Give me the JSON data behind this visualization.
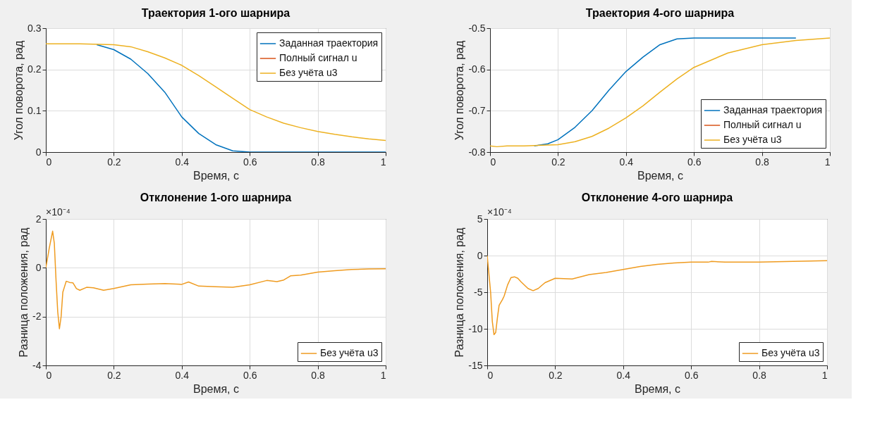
{
  "chart_data": [
    {
      "type": "line",
      "title": "Траектория 1-ого шарнира",
      "xlabel": "Время, с",
      "ylabel": "Угол поворота, рад",
      "xlim": [
        0,
        1
      ],
      "ylim": [
        0,
        0.3
      ],
      "xticks": [
        0,
        0.2,
        0.4,
        0.6,
        0.8,
        1
      ],
      "yticks": [
        0,
        0.1,
        0.2,
        0.3
      ],
      "grid": true,
      "legend": "top right",
      "series": [
        {
          "name": "Заданная траектория",
          "color": "#0072bd",
          "x": [
            0.15,
            0.2,
            0.25,
            0.3,
            0.35,
            0.4,
            0.45,
            0.5,
            0.55,
            0.6,
            0.7,
            0.8,
            0.9,
            1
          ],
          "values": [
            0.26,
            0.248,
            0.225,
            0.19,
            0.145,
            0.085,
            0.045,
            0.018,
            0.003,
            0,
            0,
            0,
            0,
            0
          ]
        },
        {
          "name": "Полный сигнал u",
          "color": "#d95319"
        },
        {
          "name": "Без учёта u3",
          "color": "#edb120",
          "x": [
            0,
            0.1,
            0.2,
            0.25,
            0.3,
            0.35,
            0.4,
            0.45,
            0.5,
            0.55,
            0.6,
            0.65,
            0.7,
            0.75,
            0.8,
            0.85,
            0.9,
            0.95,
            1
          ],
          "values": [
            0.262,
            0.262,
            0.26,
            0.255,
            0.243,
            0.228,
            0.21,
            0.185,
            0.158,
            0.13,
            0.103,
            0.085,
            0.07,
            0.059,
            0.05,
            0.043,
            0.037,
            0.032,
            0.028
          ]
        }
      ]
    },
    {
      "type": "line",
      "title": "Траектория 4-ого шарнира",
      "xlabel": "Время, с",
      "ylabel": "Угол поворота, рад",
      "xlim": [
        0,
        1
      ],
      "ylim": [
        -0.8,
        -0.5
      ],
      "xticks": [
        0,
        0.2,
        0.4,
        0.6,
        0.8,
        1
      ],
      "yticks": [
        -0.8,
        -0.7,
        -0.6,
        -0.5
      ],
      "grid": true,
      "legend": "bottom right",
      "series": [
        {
          "name": "Заданная траектория",
          "color": "#0072bd",
          "x": [
            0.13,
            0.17,
            0.2,
            0.25,
            0.3,
            0.35,
            0.4,
            0.45,
            0.5,
            0.55,
            0.6,
            0.8,
            0.9
          ],
          "values": [
            -0.785,
            -0.78,
            -0.77,
            -0.74,
            -0.7,
            -0.65,
            -0.605,
            -0.57,
            -0.54,
            -0.526,
            -0.524,
            -0.524,
            -0.524
          ]
        },
        {
          "name": "Полный сигнал u",
          "color": "#d95319"
        },
        {
          "name": "Без учёта u3",
          "color": "#edb120",
          "x": [
            0,
            0.02,
            0.05,
            0.1,
            0.2,
            0.25,
            0.3,
            0.35,
            0.4,
            0.45,
            0.5,
            0.55,
            0.6,
            0.7,
            0.8,
            0.9,
            1
          ],
          "values": [
            -0.785,
            -0.787,
            -0.785,
            -0.785,
            -0.782,
            -0.775,
            -0.762,
            -0.742,
            -0.717,
            -0.688,
            -0.655,
            -0.623,
            -0.595,
            -0.56,
            -0.54,
            -0.53,
            -0.524
          ]
        }
      ]
    },
    {
      "type": "line",
      "title": "Отклонение 1-ого шарнира",
      "xlabel": "Время, с",
      "ylabel": "Разница положения, рад",
      "xlim": [
        0,
        1
      ],
      "ylim": [
        -4,
        2
      ],
      "xticks": [
        0,
        0.2,
        0.4,
        0.6,
        0.8,
        1
      ],
      "yticks": [
        -4,
        -2,
        0,
        2
      ],
      "grid": true,
      "legend": "bottom right",
      "annotations": [
        "×10⁻⁴"
      ],
      "series": [
        {
          "name": "Без учёта u3",
          "color": "#ef9b20",
          "x": [
            0,
            0.01,
            0.02,
            0.025,
            0.03,
            0.035,
            0.04,
            0.045,
            0.05,
            0.06,
            0.07,
            0.08,
            0.09,
            0.1,
            0.12,
            0.14,
            0.17,
            0.2,
            0.25,
            0.3,
            0.35,
            0.4,
            0.42,
            0.45,
            0.5,
            0.55,
            0.6,
            0.65,
            0.68,
            0.7,
            0.72,
            0.75,
            0.8,
            0.85,
            0.9,
            0.95,
            1
          ],
          "values": [
            0,
            0.8,
            1.5,
            1.0,
            -0.5,
            -1.8,
            -2.5,
            -2.0,
            -1.0,
            -0.55,
            -0.6,
            -0.62,
            -0.85,
            -0.92,
            -0.8,
            -0.82,
            -0.92,
            -0.85,
            -0.7,
            -0.67,
            -0.65,
            -0.68,
            -0.58,
            -0.75,
            -0.78,
            -0.8,
            -0.7,
            -0.52,
            -0.57,
            -0.5,
            -0.33,
            -0.3,
            -0.18,
            -0.12,
            -0.07,
            -0.05,
            -0.04
          ]
        }
      ]
    },
    {
      "type": "line",
      "title": "Отклонение 4-ого шарнира",
      "xlabel": "Время, с",
      "ylabel": "Разница положения, рад",
      "xlim": [
        0,
        1
      ],
      "ylim": [
        -15,
        5
      ],
      "xticks": [
        0,
        0.2,
        0.4,
        0.6,
        0.8,
        1
      ],
      "yticks": [
        -15,
        -10,
        -5,
        0,
        5
      ],
      "grid": true,
      "legend": "bottom right",
      "annotations": [
        "×10⁻⁴"
      ],
      "series": [
        {
          "name": "Без учёта u3",
          "color": "#ef9b20",
          "x": [
            0,
            0.01,
            0.015,
            0.02,
            0.025,
            0.03,
            0.035,
            0.045,
            0.05,
            0.06,
            0.07,
            0.08,
            0.09,
            0.1,
            0.12,
            0.135,
            0.15,
            0.17,
            0.2,
            0.25,
            0.3,
            0.35,
            0.4,
            0.45,
            0.5,
            0.55,
            0.6,
            0.65,
            0.66,
            0.7,
            0.8,
            0.9,
            1
          ],
          "values": [
            0,
            -5,
            -9,
            -10.8,
            -10.5,
            -8.5,
            -6.8,
            -6,
            -5.5,
            -4,
            -3,
            -2.9,
            -3.1,
            -3.6,
            -4.5,
            -4.8,
            -4.5,
            -3.7,
            -3.1,
            -3.2,
            -2.6,
            -2.3,
            -1.9,
            -1.5,
            -1.2,
            -1,
            -0.9,
            -0.9,
            -0.8,
            -0.9,
            -0.9,
            -0.8,
            -0.7
          ]
        }
      ]
    }
  ]
}
